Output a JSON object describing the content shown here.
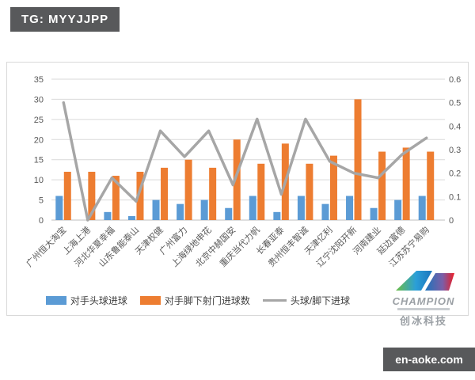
{
  "header_badge": {
    "text": "TG: MYYJJPP"
  },
  "footer_badge": {
    "text": "en-aoke.com"
  },
  "logo": {
    "brand": "CHAMPION",
    "company": "创冰科技"
  },
  "colors": {
    "bar_blue": "#5B9BD5",
    "bar_orange": "#ED7D31",
    "line_gray": "#A6A6A6",
    "axis_text": "#595959",
    "gridline": "#D9D9D9",
    "axis_baseline": "#BFBFBF",
    "badge_bg": "#58595B"
  },
  "chart_data": {
    "type": "combo",
    "categories": [
      "广州恒大淘宝",
      "上海上港",
      "河北华夏幸福",
      "山东鲁能泰山",
      "天津权健",
      "广州富力",
      "上海绿地申花",
      "北京中赫国安",
      "重庆当代力帆",
      "长春亚泰",
      "贵州恒丰智诚",
      "天津亿利",
      "辽宁沈阳开新",
      "河南建业",
      "延边富德",
      "江苏苏宁易购"
    ],
    "series": [
      {
        "name": "对手头球进球",
        "kind": "bar",
        "axis": "left",
        "color": "#5B9BD5",
        "values": [
          6,
          0,
          2,
          1,
          5,
          4,
          5,
          3,
          6,
          2,
          6,
          4,
          6,
          3,
          5,
          6
        ]
      },
      {
        "name": "对手脚下射门进球数",
        "kind": "bar",
        "axis": "left",
        "color": "#ED7D31",
        "values": [
          12,
          12,
          11,
          12,
          13,
          15,
          13,
          20,
          14,
          19,
          14,
          16,
          30,
          17,
          18,
          17
        ]
      },
      {
        "name": "头球/脚下进球",
        "kind": "line",
        "axis": "right",
        "color": "#A6A6A6",
        "values": [
          0.5,
          0,
          0.18,
          0.08,
          0.38,
          0.27,
          0.38,
          0.15,
          0.43,
          0.11,
          0.43,
          0.25,
          0.2,
          0.18,
          0.28,
          0.35
        ]
      }
    ],
    "left_axis": {
      "min": 0,
      "max": 35,
      "step": 5
    },
    "right_axis": {
      "min": 0,
      "max": 0.6,
      "step": 0.1
    },
    "grid": true,
    "legend_position": "bottom"
  }
}
